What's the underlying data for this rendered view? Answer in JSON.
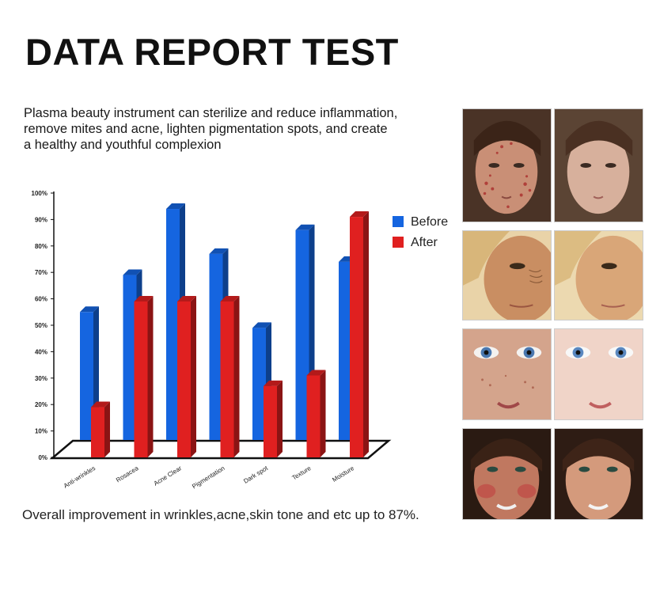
{
  "heading": "DATA REPORT TEST",
  "description": [
    "Plasma beauty instrument can sterilize and reduce inflammation,",
    "remove mites and acne, lighten pigmentation spots, and create",
    "a healthy and youthful complexion"
  ],
  "footer": "Overall improvement in wrinkles,acne,skin tone and etc up to 87%.",
  "colors": {
    "before": "#1565e0",
    "after": "#e02020",
    "floor": "#ffffff"
  },
  "chart_data": {
    "type": "bar",
    "categories": [
      "Anti-wrinkles",
      "Rosacea",
      "Acne Clear",
      "Pigmentation",
      "Dark spot",
      "Texture",
      "Moisture"
    ],
    "series": [
      {
        "name": "Before",
        "values": [
          55,
          69,
          94,
          77,
          49,
          86,
          74
        ]
      },
      {
        "name": "After",
        "values": [
          19,
          59,
          59,
          59,
          27,
          31,
          91
        ]
      }
    ],
    "yticks": [
      "0%",
      "10%",
      "20%",
      "30%",
      "40%",
      "50%",
      "60%",
      "70%",
      "80%",
      "90%",
      "100%"
    ],
    "ylim": [
      0,
      100
    ],
    "grid": false,
    "legend_position": "right",
    "three_d": true
  },
  "photos": [
    {
      "name": "acne-before-photo",
      "type": "before",
      "issue": "acne"
    },
    {
      "name": "acne-after-photo",
      "type": "after",
      "issue": "acne"
    },
    {
      "name": "wrinkles-before-photo",
      "type": "before",
      "issue": "wrinkles"
    },
    {
      "name": "wrinkles-after-photo",
      "type": "after",
      "issue": "wrinkles"
    },
    {
      "name": "eyes-before-photo",
      "type": "before",
      "issue": "texture"
    },
    {
      "name": "eyes-after-photo",
      "type": "after",
      "issue": "texture"
    },
    {
      "name": "redness-before-photo",
      "type": "before",
      "issue": "redness"
    },
    {
      "name": "redness-after-photo",
      "type": "after",
      "issue": "redness"
    }
  ]
}
